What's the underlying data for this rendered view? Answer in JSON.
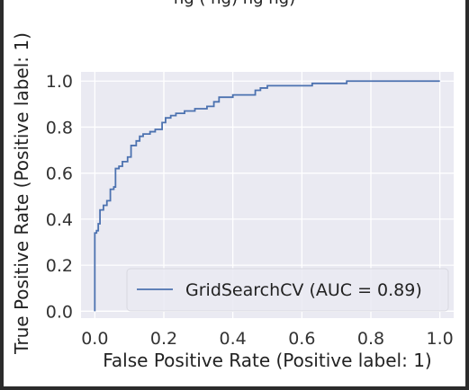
{
  "window": {
    "cut_title": "ng  (         ng)      ng          ng)"
  },
  "chart_data": {
    "type": "line",
    "title": "",
    "xlabel": "False Positive Rate (Positive label: 1)",
    "ylabel": "True Positive Rate (Positive label: 1)",
    "xlim": [
      -0.04,
      1.04
    ],
    "ylim": [
      -0.03,
      1.04
    ],
    "xticks": [
      0.0,
      0.2,
      0.4,
      0.6,
      0.8,
      1.0
    ],
    "xtick_labels": [
      "0.0",
      "0.2",
      "0.4",
      "0.6",
      "0.8",
      "1.0"
    ],
    "yticks": [
      0.0,
      0.2,
      0.4,
      0.6,
      0.8,
      1.0
    ],
    "ytick_labels": [
      "0.0",
      "0.2",
      "0.4",
      "0.6",
      "0.8",
      "1.0"
    ],
    "grid": true,
    "legend_position": "bottom-right",
    "background": "#eaeaf2",
    "series": [
      {
        "name": "GridSearchCV (AUC = 0.89)",
        "color": "#4c72b0",
        "x": [
          0.0,
          0.0,
          0.005,
          0.005,
          0.01,
          0.01,
          0.015,
          0.015,
          0.025,
          0.025,
          0.035,
          0.035,
          0.045,
          0.045,
          0.055,
          0.055,
          0.06,
          0.06,
          0.07,
          0.07,
          0.08,
          0.08,
          0.095,
          0.095,
          0.105,
          0.105,
          0.12,
          0.12,
          0.13,
          0.13,
          0.14,
          0.14,
          0.16,
          0.16,
          0.175,
          0.175,
          0.195,
          0.195,
          0.205,
          0.205,
          0.22,
          0.22,
          0.235,
          0.235,
          0.26,
          0.26,
          0.29,
          0.29,
          0.325,
          0.325,
          0.345,
          0.345,
          0.36,
          0.36,
          0.4,
          0.4,
          0.465,
          0.465,
          0.48,
          0.48,
          0.5,
          0.5,
          0.52,
          0.52,
          0.63,
          0.63,
          0.73,
          0.73,
          1.0
        ],
        "y": [
          0.0,
          0.34,
          0.34,
          0.35,
          0.35,
          0.38,
          0.38,
          0.44,
          0.44,
          0.46,
          0.46,
          0.48,
          0.48,
          0.53,
          0.53,
          0.54,
          0.54,
          0.62,
          0.62,
          0.63,
          0.63,
          0.65,
          0.65,
          0.67,
          0.67,
          0.72,
          0.72,
          0.74,
          0.74,
          0.76,
          0.76,
          0.77,
          0.77,
          0.78,
          0.78,
          0.79,
          0.79,
          0.82,
          0.82,
          0.84,
          0.84,
          0.85,
          0.85,
          0.86,
          0.86,
          0.87,
          0.87,
          0.88,
          0.88,
          0.89,
          0.89,
          0.91,
          0.91,
          0.93,
          0.93,
          0.94,
          0.94,
          0.96,
          0.96,
          0.97,
          0.97,
          0.98,
          0.98,
          0.98,
          0.98,
          0.99,
          0.99,
          1.0,
          1.0
        ]
      }
    ]
  }
}
